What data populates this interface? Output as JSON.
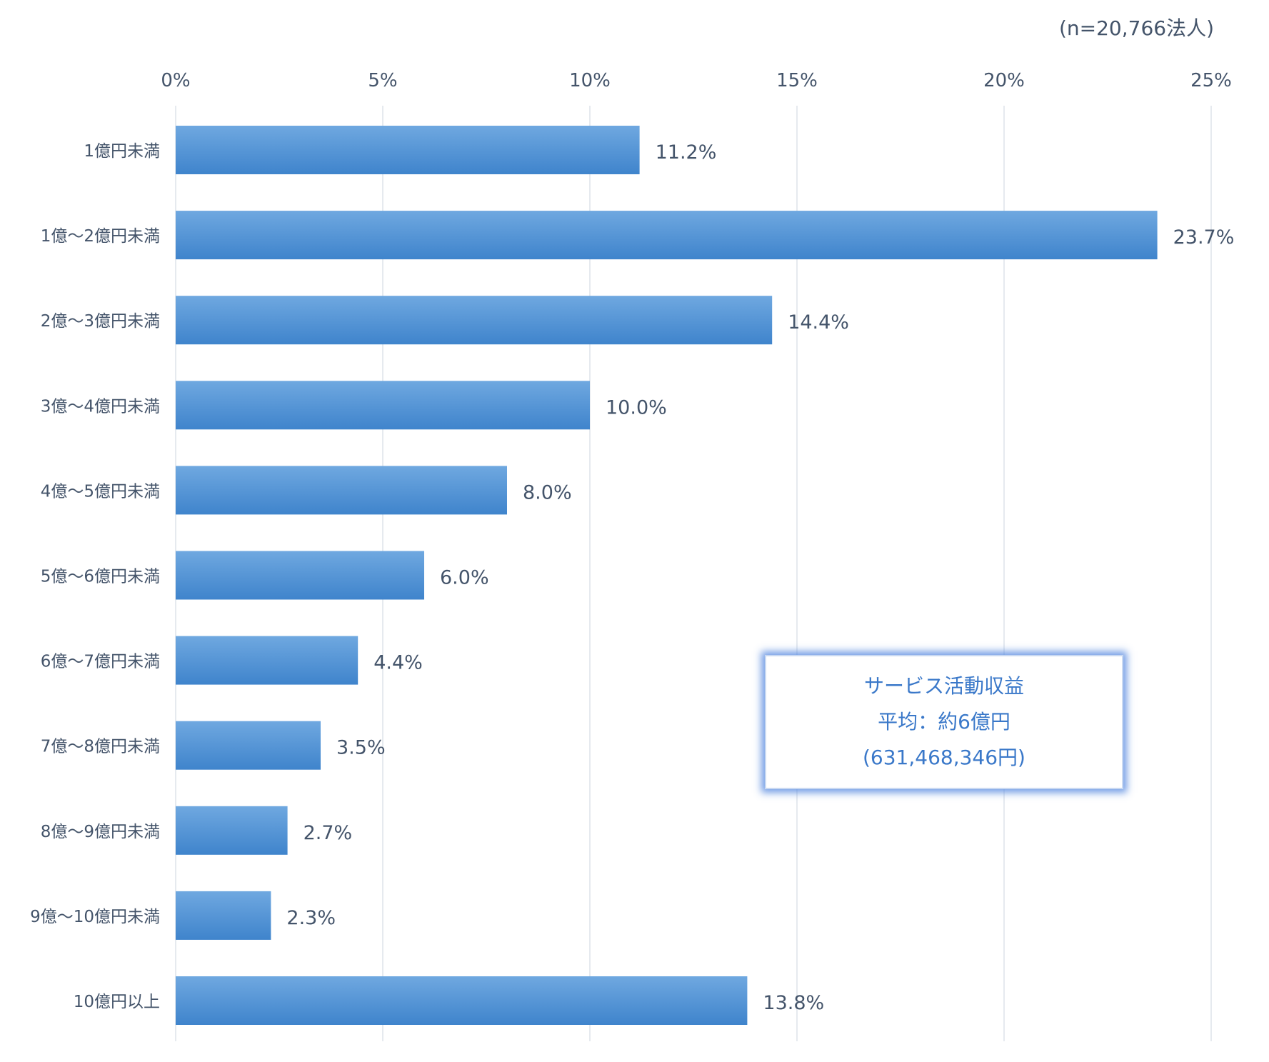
{
  "chart_data": {
    "type": "bar",
    "orientation": "horizontal",
    "categories": [
      "1億円未満",
      "1億～2億円未満",
      "2億～3億円未満",
      "3億～4億円未満",
      "4億～5億円未満",
      "5億～6億円未満",
      "6億～7億円未満",
      "7億～8億円未満",
      "8億～9億円未満",
      "9億～10億円未満",
      "10億円以上"
    ],
    "values": [
      11.2,
      23.7,
      14.4,
      10.0,
      8.0,
      6.0,
      4.4,
      3.5,
      2.7,
      2.3,
      13.8
    ],
    "value_labels": [
      "11.2%",
      "23.7%",
      "14.4%",
      "10.0%",
      "8.0%",
      "6.0%",
      "4.4%",
      "3.5%",
      "2.7%",
      "2.3%",
      "13.8%"
    ],
    "x_ticks": [
      "0%",
      "5%",
      "10%",
      "15%",
      "20%",
      "25%"
    ],
    "xlim": [
      0,
      25
    ],
    "x_axis_position": "top",
    "grid": true,
    "bar_color": "#4a90d9",
    "note": "(n=20,766法人)"
  },
  "callout": {
    "line1": "サービス活動収益",
    "line2": "平均：約6億円",
    "line3": "(631,468,346円)"
  },
  "colors": {
    "bar_top": "#6fa8e0",
    "bar_bottom": "#3f84cc",
    "grid": "#dde3ea",
    "text": "#44546a",
    "callout_text": "#3a78c9"
  }
}
